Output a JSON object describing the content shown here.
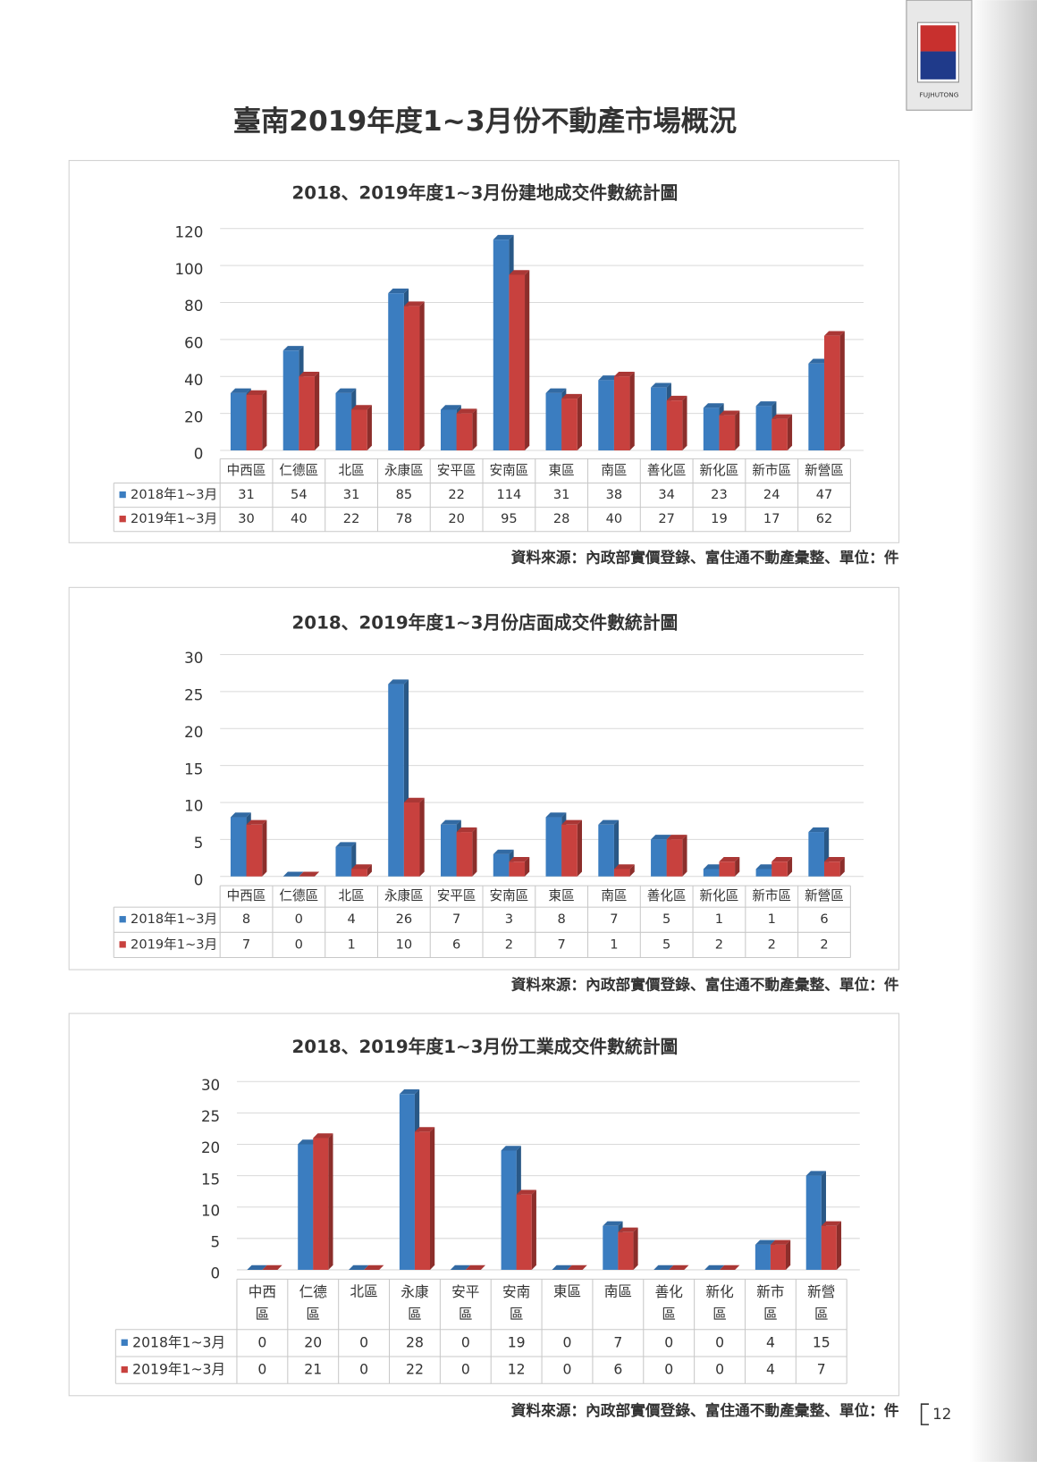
{
  "page_title": "臺南2019年度1~3月份不動產市場概況",
  "page_number": "12",
  "logo_text": "FUJHUTONG",
  "chart_data": [
    {
      "type": "bar",
      "title": "2018、2019年度1~3月份建地成交件數統計圖",
      "source": "資料來源：內政部實價登錄、富住通不動產彙整、單位：件",
      "categories": [
        "中西區",
        "仁德區",
        "北區",
        "永康區",
        "安平區",
        "安南區",
        "東區",
        "南區",
        "善化區",
        "新化區",
        "新市區",
        "新營區"
      ],
      "series": [
        {
          "name": "2018年1~3月",
          "color": "#3b7dc0",
          "values": [
            31,
            54,
            31,
            85,
            22,
            114,
            31,
            38,
            34,
            23,
            24,
            47
          ]
        },
        {
          "name": "2019年1~3月",
          "color": "#c8413e",
          "values": [
            30,
            40,
            22,
            78,
            20,
            95,
            28,
            40,
            27,
            19,
            17,
            62
          ]
        }
      ],
      "ylim": [
        0,
        120
      ],
      "yticks": [
        0,
        20,
        40,
        60,
        80,
        100,
        120
      ],
      "grid": true
    },
    {
      "type": "bar",
      "title": "2018、2019年度1~3月份店面成交件數統計圖",
      "source": "資料來源：內政部實價登錄、富住通不動產彙整、單位：件",
      "categories": [
        "中西區",
        "仁德區",
        "北區",
        "永康區",
        "安平區",
        "安南區",
        "東區",
        "南區",
        "善化區",
        "新化區",
        "新市區",
        "新營區"
      ],
      "series": [
        {
          "name": "2018年1~3月",
          "color": "#3b7dc0",
          "values": [
            8,
            0,
            4,
            26,
            7,
            3,
            8,
            7,
            5,
            1,
            1,
            6
          ]
        },
        {
          "name": "2019年1~3月",
          "color": "#c8413e",
          "values": [
            7,
            0,
            1,
            10,
            6,
            2,
            7,
            1,
            5,
            2,
            2,
            2
          ]
        }
      ],
      "ylim": [
        0,
        30
      ],
      "yticks": [
        0,
        5,
        10,
        15,
        20,
        25,
        30
      ],
      "grid": true
    },
    {
      "type": "bar",
      "title": "2018、2019年度1~3月份工業成交件數統計圖",
      "source": "資料來源：內政部實價登錄、富住通不動產彙整、單位：件",
      "categories": [
        "中西區",
        "仁德區",
        "北區",
        "永康區",
        "安平區",
        "安南區",
        "東區",
        "南區",
        "善化區",
        "新化區",
        "新市區",
        "新營區"
      ],
      "series": [
        {
          "name": "2018年1~3月",
          "color": "#3b7dc0",
          "values": [
            0,
            20,
            0,
            28,
            0,
            19,
            0,
            7,
            0,
            0,
            4,
            15
          ]
        },
        {
          "name": "2019年1~3月",
          "color": "#c8413e",
          "values": [
            0,
            21,
            0,
            22,
            0,
            12,
            0,
            6,
            0,
            0,
            4,
            7
          ]
        }
      ],
      "ylim": [
        0,
        30
      ],
      "yticks": [
        0,
        5,
        10,
        15,
        20,
        25,
        30
      ],
      "grid": true
    }
  ]
}
